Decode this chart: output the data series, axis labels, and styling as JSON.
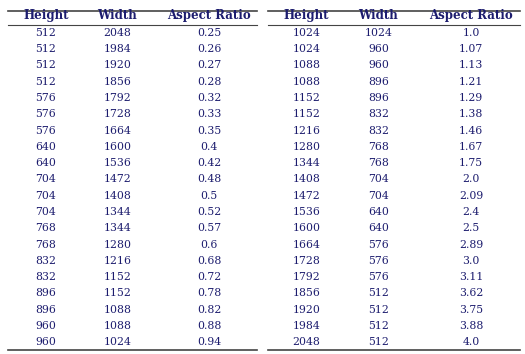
{
  "left_table": {
    "headers": [
      "Height",
      "Width",
      "Aspect Ratio"
    ],
    "rows": [
      [
        "512",
        "2048",
        "0.25"
      ],
      [
        "512",
        "1984",
        "0.26"
      ],
      [
        "512",
        "1920",
        "0.27"
      ],
      [
        "512",
        "1856",
        "0.28"
      ],
      [
        "576",
        "1792",
        "0.32"
      ],
      [
        "576",
        "1728",
        "0.33"
      ],
      [
        "576",
        "1664",
        "0.35"
      ],
      [
        "640",
        "1600",
        "0.4"
      ],
      [
        "640",
        "1536",
        "0.42"
      ],
      [
        "704",
        "1472",
        "0.48"
      ],
      [
        "704",
        "1408",
        "0.5"
      ],
      [
        "704",
        "1344",
        "0.52"
      ],
      [
        "768",
        "1344",
        "0.57"
      ],
      [
        "768",
        "1280",
        "0.6"
      ],
      [
        "832",
        "1216",
        "0.68"
      ],
      [
        "832",
        "1152",
        "0.72"
      ],
      [
        "896",
        "1152",
        "0.78"
      ],
      [
        "896",
        "1088",
        "0.82"
      ],
      [
        "960",
        "1088",
        "0.88"
      ],
      [
        "960",
        "1024",
        "0.94"
      ]
    ]
  },
  "right_table": {
    "headers": [
      "Height",
      "Width",
      "Aspect Ratio"
    ],
    "rows": [
      [
        "1024",
        "1024",
        "1.0"
      ],
      [
        "1024",
        "960",
        "1.07"
      ],
      [
        "1088",
        "960",
        "1.13"
      ],
      [
        "1088",
        "896",
        "1.21"
      ],
      [
        "1152",
        "896",
        "1.29"
      ],
      [
        "1152",
        "832",
        "1.38"
      ],
      [
        "1216",
        "832",
        "1.46"
      ],
      [
        "1280",
        "768",
        "1.67"
      ],
      [
        "1344",
        "768",
        "1.75"
      ],
      [
        "1408",
        "704",
        "2.0"
      ],
      [
        "1472",
        "704",
        "2.09"
      ],
      [
        "1536",
        "640",
        "2.4"
      ],
      [
        "1600",
        "640",
        "2.5"
      ],
      [
        "1664",
        "576",
        "2.89"
      ],
      [
        "1728",
        "576",
        "3.0"
      ],
      [
        "1792",
        "576",
        "3.11"
      ],
      [
        "1856",
        "512",
        "3.62"
      ],
      [
        "1920",
        "512",
        "3.75"
      ],
      [
        "1984",
        "512",
        "3.88"
      ],
      [
        "2048",
        "512",
        "4.0"
      ]
    ]
  },
  "header_color": "#1c1c6e",
  "data_color": "#1c1c6e",
  "bg_color": "#ffffff",
  "line_color": "#444444",
  "font_size": 7.8,
  "header_font_size": 8.5,
  "fig_width": 5.25,
  "fig_height": 3.54,
  "dpi": 100
}
